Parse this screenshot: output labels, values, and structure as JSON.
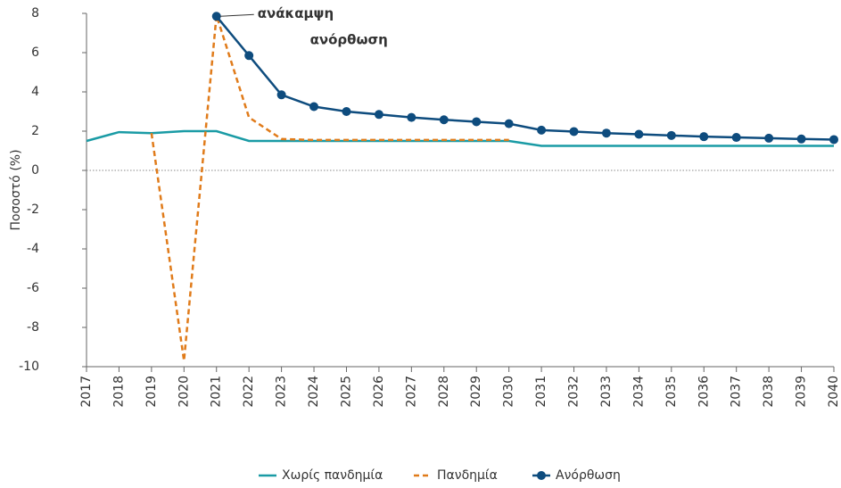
{
  "chart_data": {
    "type": "line",
    "y_label": "Ποσοστό (%)",
    "categories": [
      "2017",
      "2018",
      "2019",
      "2020",
      "2021",
      "2022",
      "2023",
      "2024",
      "2025",
      "2026",
      "2027",
      "2028",
      "2029",
      "2030",
      "2031",
      "2032",
      "2033",
      "2034",
      "2035",
      "2036",
      "2037",
      "2038",
      "2039",
      "2040"
    ],
    "series": [
      {
        "name": "Χωρίς πανδημία",
        "color": "#1a9ba5",
        "style": "solid",
        "markers": false,
        "values": [
          1.5,
          1.95,
          1.9,
          2.0,
          2.0,
          1.5,
          1.5,
          1.5,
          1.5,
          1.5,
          1.5,
          1.5,
          1.5,
          1.5,
          1.25,
          1.25,
          1.25,
          1.25,
          1.25,
          1.25,
          1.25,
          1.25,
          1.25,
          1.25
        ]
      },
      {
        "name": "Πανδημία",
        "color": "#e07b1a",
        "style": "dashed",
        "markers": false,
        "values": [
          null,
          null,
          1.9,
          -9.7,
          7.9,
          2.7,
          1.6,
          1.55,
          1.55,
          1.55,
          1.55,
          1.55,
          1.55,
          1.55,
          null,
          null,
          null,
          null,
          null,
          null,
          null,
          null,
          null,
          null
        ]
      },
      {
        "name": "Ανόρθωση",
        "color": "#0e4c7e",
        "style": "solid",
        "markers": true,
        "values": [
          null,
          null,
          null,
          null,
          7.85,
          5.85,
          3.85,
          3.25,
          3.0,
          2.85,
          2.7,
          2.58,
          2.48,
          2.38,
          2.05,
          1.98,
          1.9,
          1.84,
          1.78,
          1.72,
          1.68,
          1.64,
          1.6,
          1.57
        ]
      }
    ],
    "annotations": [
      {
        "text": "ανάκαμψη",
        "category": "2021",
        "value": 7.85
      },
      {
        "text": "ανόρθωση",
        "category": "2023",
        "value": 6
      }
    ],
    "ylim": [
      -10,
      8
    ],
    "yticks": [
      -10,
      -8,
      -6,
      -4,
      -2,
      0,
      2,
      4,
      6,
      8
    ],
    "zero_line": true,
    "legend": "bottom"
  }
}
